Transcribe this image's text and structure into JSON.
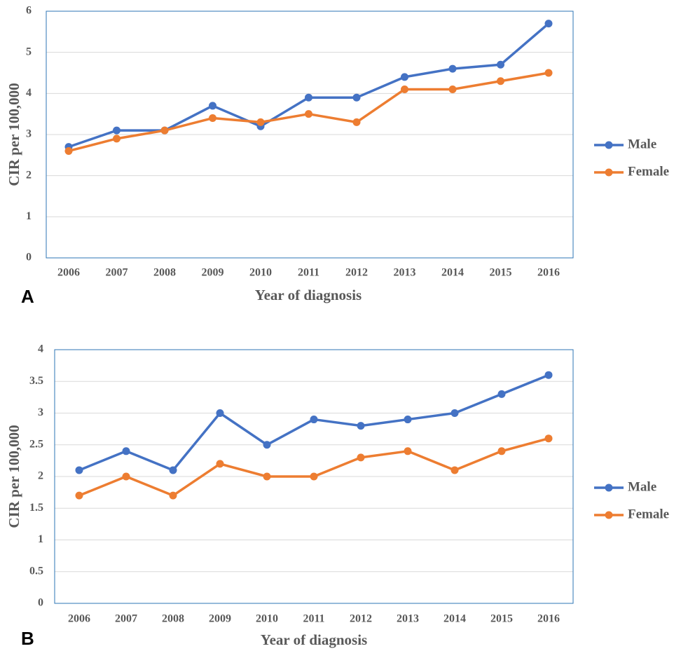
{
  "chart_data": [
    {
      "type": "line",
      "panel_label": "A",
      "xlabel": "Year of diagnosis",
      "ylabel": "CIR per 100,000",
      "categories": [
        "2006",
        "2007",
        "2008",
        "2009",
        "2010",
        "2011",
        "2012",
        "2013",
        "2014",
        "2015",
        "2016"
      ],
      "series": [
        {
          "name": "Male",
          "color": "#4472c4",
          "values": [
            2.7,
            3.1,
            3.1,
            3.7,
            3.2,
            3.9,
            3.9,
            4.4,
            4.6,
            4.7,
            5.7
          ]
        },
        {
          "name": "Female",
          "color": "#ed7d31",
          "values": [
            2.6,
            2.9,
            3.1,
            3.4,
            3.3,
            3.5,
            3.3,
            4.1,
            4.1,
            4.3,
            4.5
          ]
        }
      ],
      "ylim": [
        0,
        6
      ],
      "yticks": [
        0,
        1,
        2,
        3,
        4,
        5,
        6
      ],
      "grid": true,
      "legend": "right"
    },
    {
      "type": "line",
      "panel_label": "B",
      "xlabel": "Year of diagnosis",
      "ylabel": "CIR per 100,000",
      "categories": [
        "2006",
        "2007",
        "2008",
        "2009",
        "2010",
        "2011",
        "2012",
        "2013",
        "2014",
        "2015",
        "2016"
      ],
      "series": [
        {
          "name": "Male",
          "color": "#4472c4",
          "values": [
            2.1,
            2.4,
            2.1,
            3.0,
            2.5,
            2.9,
            2.8,
            2.9,
            3.0,
            3.3,
            3.6
          ]
        },
        {
          "name": "Female",
          "color": "#ed7d31",
          "values": [
            1.7,
            2.0,
            1.7,
            2.2,
            2.0,
            2.0,
            2.3,
            2.4,
            2.1,
            2.4,
            2.6
          ]
        }
      ],
      "ylim": [
        0,
        4
      ],
      "yticks": [
        0,
        0.5,
        1,
        1.5,
        2,
        2.5,
        3,
        3.5,
        4
      ],
      "grid": true,
      "legend": "right"
    }
  ]
}
